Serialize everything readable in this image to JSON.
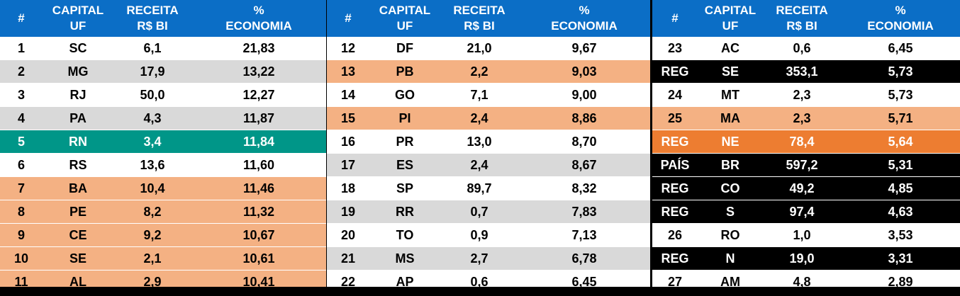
{
  "headers": {
    "rank": "#",
    "capital_line1": "CAPITAL",
    "capital_line2": "UF",
    "receita_line1": "RECEITA",
    "receita_line2": "R$ BI",
    "economia_line1": "%",
    "economia_line2": "ECONOMIA"
  },
  "panels": [
    {
      "rows": [
        {
          "rank": "1",
          "uf": "SC",
          "receita": "6,1",
          "economia": "21,83",
          "style": "white"
        },
        {
          "rank": "2",
          "uf": "MG",
          "receita": "17,9",
          "economia": "13,22",
          "style": "gray"
        },
        {
          "rank": "3",
          "uf": "RJ",
          "receita": "50,0",
          "economia": "12,27",
          "style": "white"
        },
        {
          "rank": "4",
          "uf": "PA",
          "receita": "4,3",
          "economia": "11,87",
          "style": "gray"
        },
        {
          "rank": "5",
          "uf": "RN",
          "receita": "3,4",
          "economia": "11,84",
          "style": "teal"
        },
        {
          "rank": "6",
          "uf": "RS",
          "receita": "13,6",
          "economia": "11,60",
          "style": "white"
        },
        {
          "rank": "7",
          "uf": "BA",
          "receita": "10,4",
          "economia": "11,46",
          "style": "salmon"
        },
        {
          "rank": "8",
          "uf": "PE",
          "receita": "8,2",
          "economia": "11,32",
          "style": "salmon"
        },
        {
          "rank": "9",
          "uf": "CE",
          "receita": "9,2",
          "economia": "10,67",
          "style": "salmon"
        },
        {
          "rank": "10",
          "uf": "SE",
          "receita": "2,1",
          "economia": "10,61",
          "style": "salmon"
        },
        {
          "rank": "11",
          "uf": "AL",
          "receita": "2,9",
          "economia": "10,41",
          "style": "salmon"
        }
      ]
    },
    {
      "rows": [
        {
          "rank": "12",
          "uf": "DF",
          "receita": "21,0",
          "economia": "9,67",
          "style": "white"
        },
        {
          "rank": "13",
          "uf": "PB",
          "receita": "2,2",
          "economia": "9,03",
          "style": "salmon"
        },
        {
          "rank": "14",
          "uf": "GO",
          "receita": "7,1",
          "economia": "9,00",
          "style": "white"
        },
        {
          "rank": "15",
          "uf": "PI",
          "receita": "2,4",
          "economia": "8,86",
          "style": "salmon"
        },
        {
          "rank": "16",
          "uf": "PR",
          "receita": "13,0",
          "economia": "8,70",
          "style": "white"
        },
        {
          "rank": "17",
          "uf": "ES",
          "receita": "2,4",
          "economia": "8,67",
          "style": "gray"
        },
        {
          "rank": "18",
          "uf": "SP",
          "receita": "89,7",
          "economia": "8,32",
          "style": "white"
        },
        {
          "rank": "19",
          "uf": "RR",
          "receita": "0,7",
          "economia": "7,83",
          "style": "gray"
        },
        {
          "rank": "20",
          "uf": "TO",
          "receita": "0,9",
          "economia": "7,13",
          "style": "white"
        },
        {
          "rank": "21",
          "uf": "MS",
          "receita": "2,7",
          "economia": "6,78",
          "style": "gray"
        },
        {
          "rank": "22",
          "uf": "AP",
          "receita": "0,6",
          "economia": "6,45",
          "style": "white"
        }
      ]
    },
    {
      "rows": [
        {
          "rank": "23",
          "uf": "AC",
          "receita": "0,6",
          "economia": "6,45",
          "style": "white"
        },
        {
          "rank": "REG",
          "uf": "SE",
          "receita": "353,1",
          "economia": "5,73",
          "style": "black"
        },
        {
          "rank": "24",
          "uf": "MT",
          "receita": "2,3",
          "economia": "5,73",
          "style": "white"
        },
        {
          "rank": "25",
          "uf": "MA",
          "receita": "2,3",
          "economia": "5,71",
          "style": "salmon"
        },
        {
          "rank": "REG",
          "uf": "NE",
          "receita": "78,4",
          "economia": "5,64",
          "style": "orange"
        },
        {
          "rank": "PAÍS",
          "uf": "BR",
          "receita": "597,2",
          "economia": "5,31",
          "style": "black"
        },
        {
          "rank": "REG",
          "uf": "CO",
          "receita": "49,2",
          "economia": "4,85",
          "style": "black"
        },
        {
          "rank": "REG",
          "uf": "S",
          "receita": "97,4",
          "economia": "4,63",
          "style": "black"
        },
        {
          "rank": "26",
          "uf": "RO",
          "receita": "1,0",
          "economia": "3,53",
          "style": "white"
        },
        {
          "rank": "REG",
          "uf": "N",
          "receita": "19,0",
          "economia": "3,31",
          "style": "black"
        },
        {
          "rank": "27",
          "uf": "AM",
          "receita": "4,8",
          "economia": "2,89",
          "style": "white"
        }
      ]
    }
  ]
}
